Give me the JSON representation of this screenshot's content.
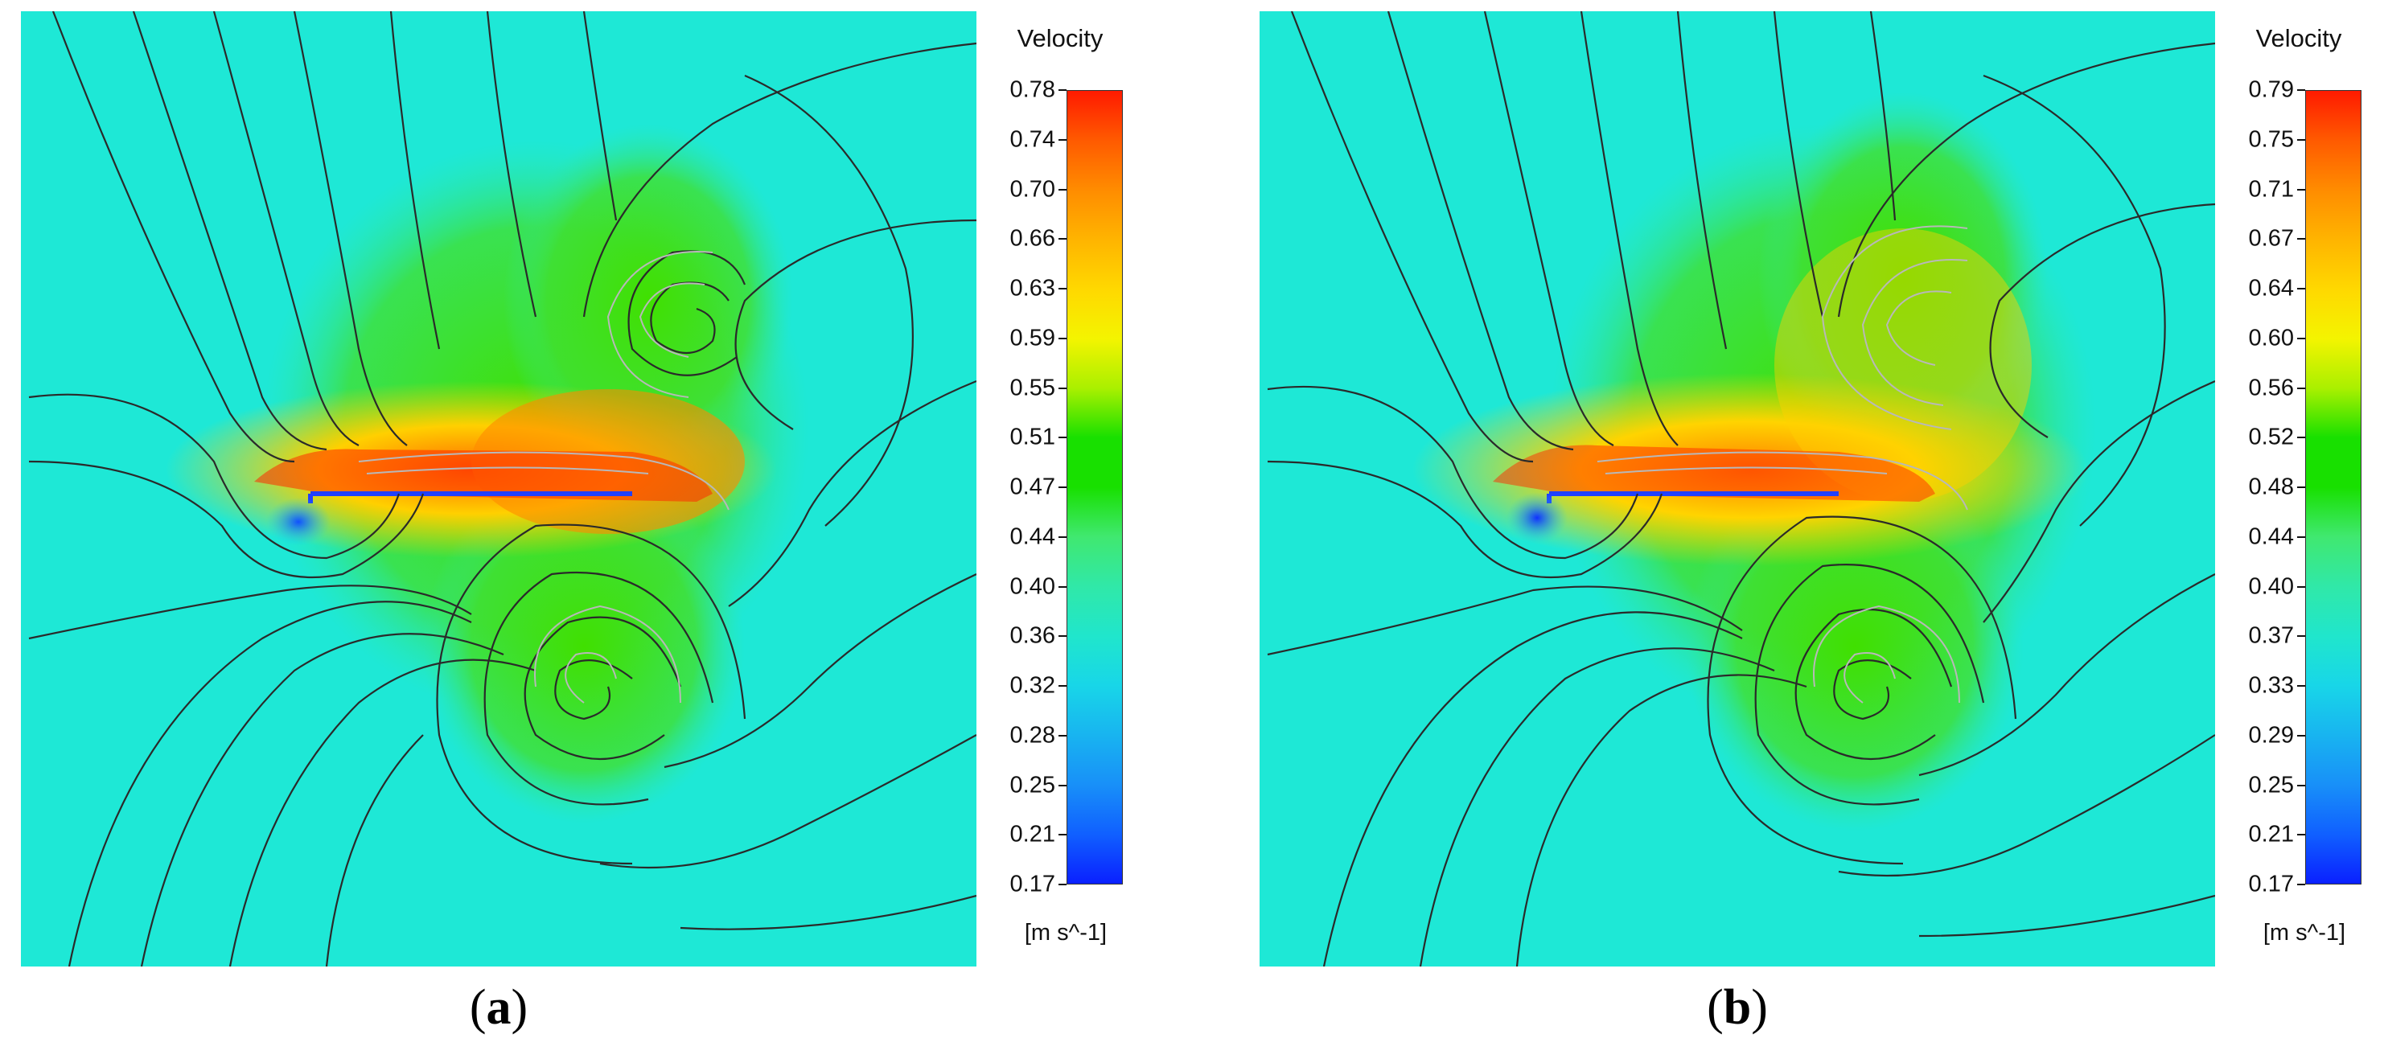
{
  "panels": [
    {
      "id": "a",
      "label": "a",
      "colorbar": {
        "title": "Velocity",
        "unit": "[m s^-1]",
        "ticks": [
          "0.78",
          "0.74",
          "0.70",
          "0.66",
          "0.63",
          "0.59",
          "0.55",
          "0.51",
          "0.47",
          "0.44",
          "0.40",
          "0.36",
          "0.32",
          "0.28",
          "0.25",
          "0.21",
          "0.17"
        ],
        "colors": [
          "#ff1a00",
          "#ff5a00",
          "#ff8c00",
          "#ffb400",
          "#ffd800",
          "#f4f400",
          "#aaf000",
          "#18e000",
          "#18e000",
          "#40e870",
          "#30e8a8",
          "#20e6cc",
          "#18d6e8",
          "#18b4f0",
          "#1890f8",
          "#1060ff",
          "#0a20ff"
        ]
      }
    },
    {
      "id": "b",
      "label": "b",
      "colorbar": {
        "title": "Velocity",
        "unit": "[m s^-1]",
        "ticks": [
          "0.79",
          "0.75",
          "0.71",
          "0.67",
          "0.64",
          "0.60",
          "0.56",
          "0.52",
          "0.48",
          "0.44",
          "0.40",
          "0.37",
          "0.33",
          "0.29",
          "0.25",
          "0.21",
          "0.17"
        ],
        "colors": [
          "#ff1a00",
          "#ff5a00",
          "#ff8c00",
          "#ffb400",
          "#ffd800",
          "#f4f400",
          "#aaf000",
          "#18e000",
          "#18e000",
          "#40e870",
          "#30e8a8",
          "#20e6cc",
          "#18d6e8",
          "#18b4f0",
          "#1890f8",
          "#1060ff",
          "#0a20ff"
        ]
      }
    }
  ],
  "style": {
    "background_color": "#1ee8d6",
    "streamline_dark": "#2a2a2a",
    "streamline_light": "#b8b8b8"
  }
}
